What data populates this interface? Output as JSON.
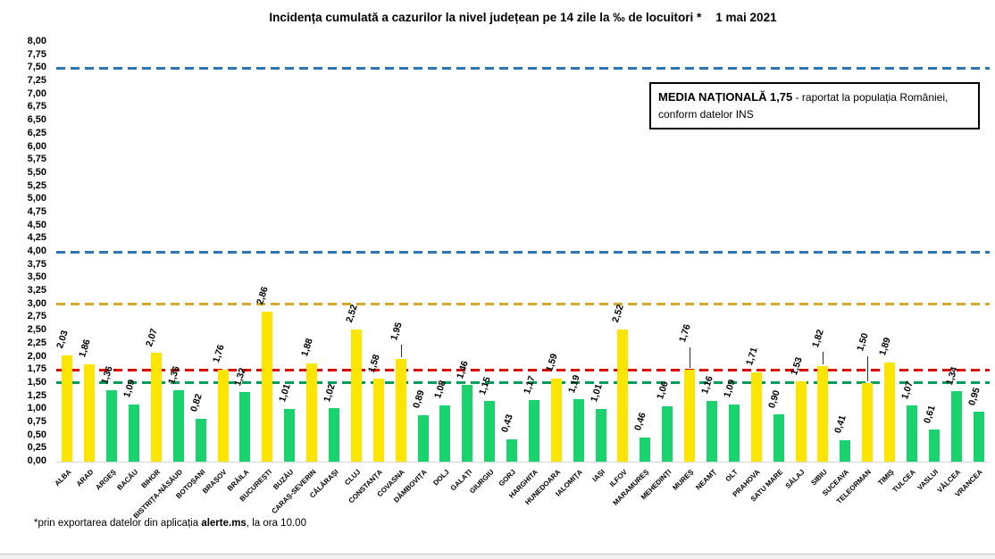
{
  "header": {
    "title": "Incidența cumulată a cazurilor la nivel județean pe 14 zile la ‰ de locuitori *",
    "date": "1 mai 2021"
  },
  "media_box": {
    "label": "MEDIA NAȚIONALĂ",
    "value": "1,75",
    "line1_rest": "- raportat la populația României,",
    "line2": "conform datelor INS",
    "value_color": "#c00000"
  },
  "footnote": {
    "prefix": "*prin exportarea datelor din aplicația ",
    "bold": "alerte.ms",
    "suffix": ", la ora 10.00"
  },
  "chart_data": {
    "type": "bar",
    "title": "Incidența cumulată a cazurilor la nivel județean pe 14 zile la ‰ de locuitori * 1 mai 2021",
    "xlabel": "",
    "ylabel": "",
    "ylim": [
      0,
      8
    ],
    "ytick_step": 0.25,
    "grid": false,
    "legend": false,
    "palette": {
      "yellow": "#FCE500",
      "green": "#1BD36E"
    },
    "reference_lines": [
      {
        "value": 7.5,
        "color": "#2E75B6",
        "style": "dashed"
      },
      {
        "value": 4.0,
        "color": "#2E75B6",
        "style": "dashed"
      },
      {
        "value": 3.0,
        "color": "#D4AC2B",
        "style": "dashed"
      },
      {
        "value": 1.75,
        "color": "#E00000",
        "style": "dashed",
        "meaning": "medie națională 1,75"
      },
      {
        "value": 1.5,
        "color": "#00A05A",
        "style": "dashed"
      }
    ],
    "bars": [
      {
        "county": "ALBA",
        "value": 2.03,
        "label": "2,03",
        "color": "yellow",
        "leader": 0
      },
      {
        "county": "ARAD",
        "value": 1.86,
        "label": "1,86",
        "color": "yellow",
        "leader": 0
      },
      {
        "county": "ARGEȘ",
        "value": 1.36,
        "label": "1,36",
        "color": "green",
        "leader": 0
      },
      {
        "county": "BACĂU",
        "value": 1.09,
        "label": "1,09",
        "color": "green",
        "leader": 0
      },
      {
        "county": "BIHOR",
        "value": 2.07,
        "label": "2,07",
        "color": "yellow",
        "leader": 0
      },
      {
        "county": "BISTRIȚA-NĂSĂUD",
        "value": 1.36,
        "label": "1,36",
        "color": "green",
        "leader": 0
      },
      {
        "county": "BOTOȘANI",
        "value": 0.82,
        "label": "0,82",
        "color": "green",
        "leader": 0
      },
      {
        "county": "BRAȘOV",
        "value": 1.76,
        "label": "1,76",
        "color": "yellow",
        "leader": 0
      },
      {
        "county": "BRĂILA",
        "value": 1.32,
        "label": "1,32",
        "color": "green",
        "leader": 0
      },
      {
        "county": "BUCUREȘTI",
        "value": 2.86,
        "label": "2,86",
        "color": "yellow",
        "leader": 0
      },
      {
        "county": "BUZĂU",
        "value": 1.01,
        "label": "1,01",
        "color": "green",
        "leader": 0
      },
      {
        "county": "CARAȘ-SEVERIN",
        "value": 1.88,
        "label": "1,88",
        "color": "yellow",
        "leader": 0
      },
      {
        "county": "CĂLĂRAȘI",
        "value": 1.02,
        "label": "1,02",
        "color": "green",
        "leader": 0
      },
      {
        "county": "CLUJ",
        "value": 2.52,
        "label": "2,52",
        "color": "yellow",
        "leader": 0
      },
      {
        "county": "CONSTANȚA",
        "value": 1.58,
        "label": "1,58",
        "color": "yellow",
        "leader": 0
      },
      {
        "county": "COVASNA",
        "value": 1.95,
        "label": "1,95",
        "color": "yellow",
        "leader": 14
      },
      {
        "county": "DÂMBOVIȚA",
        "value": 0.89,
        "label": "0,89",
        "color": "green",
        "leader": 0
      },
      {
        "county": "DOLJ",
        "value": 1.08,
        "label": "1,08",
        "color": "green",
        "leader": 0
      },
      {
        "county": "GALAȚI",
        "value": 1.46,
        "label": "1,46",
        "color": "green",
        "leader": 0
      },
      {
        "county": "GIURGIU",
        "value": 1.15,
        "label": "1,15",
        "color": "green",
        "leader": 0
      },
      {
        "county": "GORJ",
        "value": 0.43,
        "label": "0,43",
        "color": "green",
        "leader": 0
      },
      {
        "county": "HARGHITA",
        "value": 1.17,
        "label": "1,17",
        "color": "green",
        "leader": 0
      },
      {
        "county": "HUNEDOARA",
        "value": 1.59,
        "label": "1,59",
        "color": "yellow",
        "leader": 0
      },
      {
        "county": "IALOMIȚA",
        "value": 1.19,
        "label": "1,19",
        "color": "green",
        "leader": 0
      },
      {
        "county": "IAȘI",
        "value": 1.01,
        "label": "1,01",
        "color": "green",
        "leader": 0
      },
      {
        "county": "ILFOV",
        "value": 2.52,
        "label": "2,52",
        "color": "yellow",
        "leader": 0
      },
      {
        "county": "MARAMUREȘ",
        "value": 0.46,
        "label": "0,46",
        "color": "green",
        "leader": 0
      },
      {
        "county": "MEHEDINȚI",
        "value": 1.06,
        "label": "1,06",
        "color": "green",
        "leader": 0
      },
      {
        "county": "MUREȘ",
        "value": 1.76,
        "label": "1,76",
        "color": "yellow",
        "leader": 23
      },
      {
        "county": "NEAMȚ",
        "value": 1.16,
        "label": "1,16",
        "color": "green",
        "leader": 0
      },
      {
        "county": "OLT",
        "value": 1.09,
        "label": "1,09",
        "color": "green",
        "leader": 0
      },
      {
        "county": "PRAHOVA",
        "value": 1.71,
        "label": "1,71",
        "color": "yellow",
        "leader": 0
      },
      {
        "county": "SATU MARE",
        "value": 0.9,
        "label": "0,90",
        "color": "green",
        "leader": 0
      },
      {
        "county": "SĂLAJ",
        "value": 1.53,
        "label": "1,53",
        "color": "yellow",
        "leader": 0
      },
      {
        "county": "SIBIU",
        "value": 1.82,
        "label": "1,82",
        "color": "yellow",
        "leader": 14
      },
      {
        "county": "SUCEAVA",
        "value": 0.41,
        "label": "0,41",
        "color": "green",
        "leader": 0
      },
      {
        "county": "TELEORMAN",
        "value": 1.5,
        "label": "1,50",
        "color": "yellow",
        "leader": 28
      },
      {
        "county": "TIMIȘ",
        "value": 1.89,
        "label": "1,89",
        "color": "yellow",
        "leader": 0
      },
      {
        "county": "TULCEA",
        "value": 1.07,
        "label": "1,07",
        "color": "green",
        "leader": 0
      },
      {
        "county": "VASLUI",
        "value": 0.61,
        "label": "0,61",
        "color": "green",
        "leader": 0
      },
      {
        "county": "VÂLCEA",
        "value": 1.34,
        "label": "1,34",
        "color": "green",
        "leader": 0
      },
      {
        "county": "VRANCEA",
        "value": 0.95,
        "label": "0,95",
        "color": "green",
        "leader": 0
      }
    ]
  }
}
